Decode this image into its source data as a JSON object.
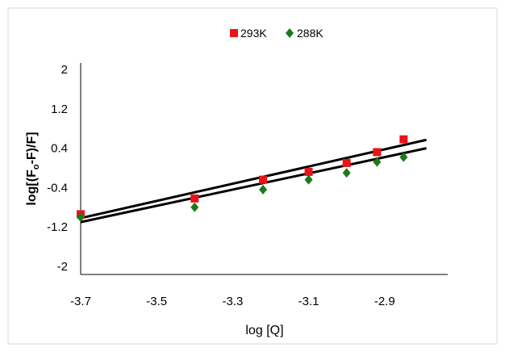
{
  "chart_data": {
    "type": "scatter",
    "xlabel": "log [Q]",
    "ylabel": "log[(F₀-F)/F]",
    "xlim": [
      -3.7,
      -2.77
    ],
    "ylim": [
      -2,
      2
    ],
    "xticks": [
      "-3.7",
      "-3.5",
      "-3.3",
      "-3.1",
      "-2.9"
    ],
    "yticks": [
      "2",
      "1.2",
      "0.4",
      "-0.4",
      "-1.2",
      "-2"
    ],
    "legend_position": "top",
    "grid": false,
    "series": [
      {
        "name": "293K",
        "marker": "square",
        "color": "#e8141a",
        "points": [
          {
            "x": -3.7,
            "y": -0.94
          },
          {
            "x": -3.4,
            "y": -0.62
          },
          {
            "x": -3.22,
            "y": -0.24
          },
          {
            "x": -3.1,
            "y": -0.08
          },
          {
            "x": -3.0,
            "y": 0.1
          },
          {
            "x": -2.92,
            "y": 0.32
          },
          {
            "x": -2.85,
            "y": 0.58
          }
        ],
        "fit": {
          "x": [
            -3.7,
            -2.79
          ],
          "y": [
            -1.02,
            0.57
          ]
        }
      },
      {
        "name": "288K",
        "marker": "diamond",
        "color": "#1a7a1a",
        "points": [
          {
            "x": -3.7,
            "y": -1.0
          },
          {
            "x": -3.4,
            "y": -0.8
          },
          {
            "x": -3.22,
            "y": -0.44
          },
          {
            "x": -3.1,
            "y": -0.24
          },
          {
            "x": -3.0,
            "y": -0.1
          },
          {
            "x": -2.92,
            "y": 0.12
          },
          {
            "x": -2.85,
            "y": 0.22
          }
        ],
        "fit": {
          "x": [
            -3.7,
            -2.79
          ],
          "y": [
            -1.1,
            0.4
          ]
        }
      }
    ]
  }
}
